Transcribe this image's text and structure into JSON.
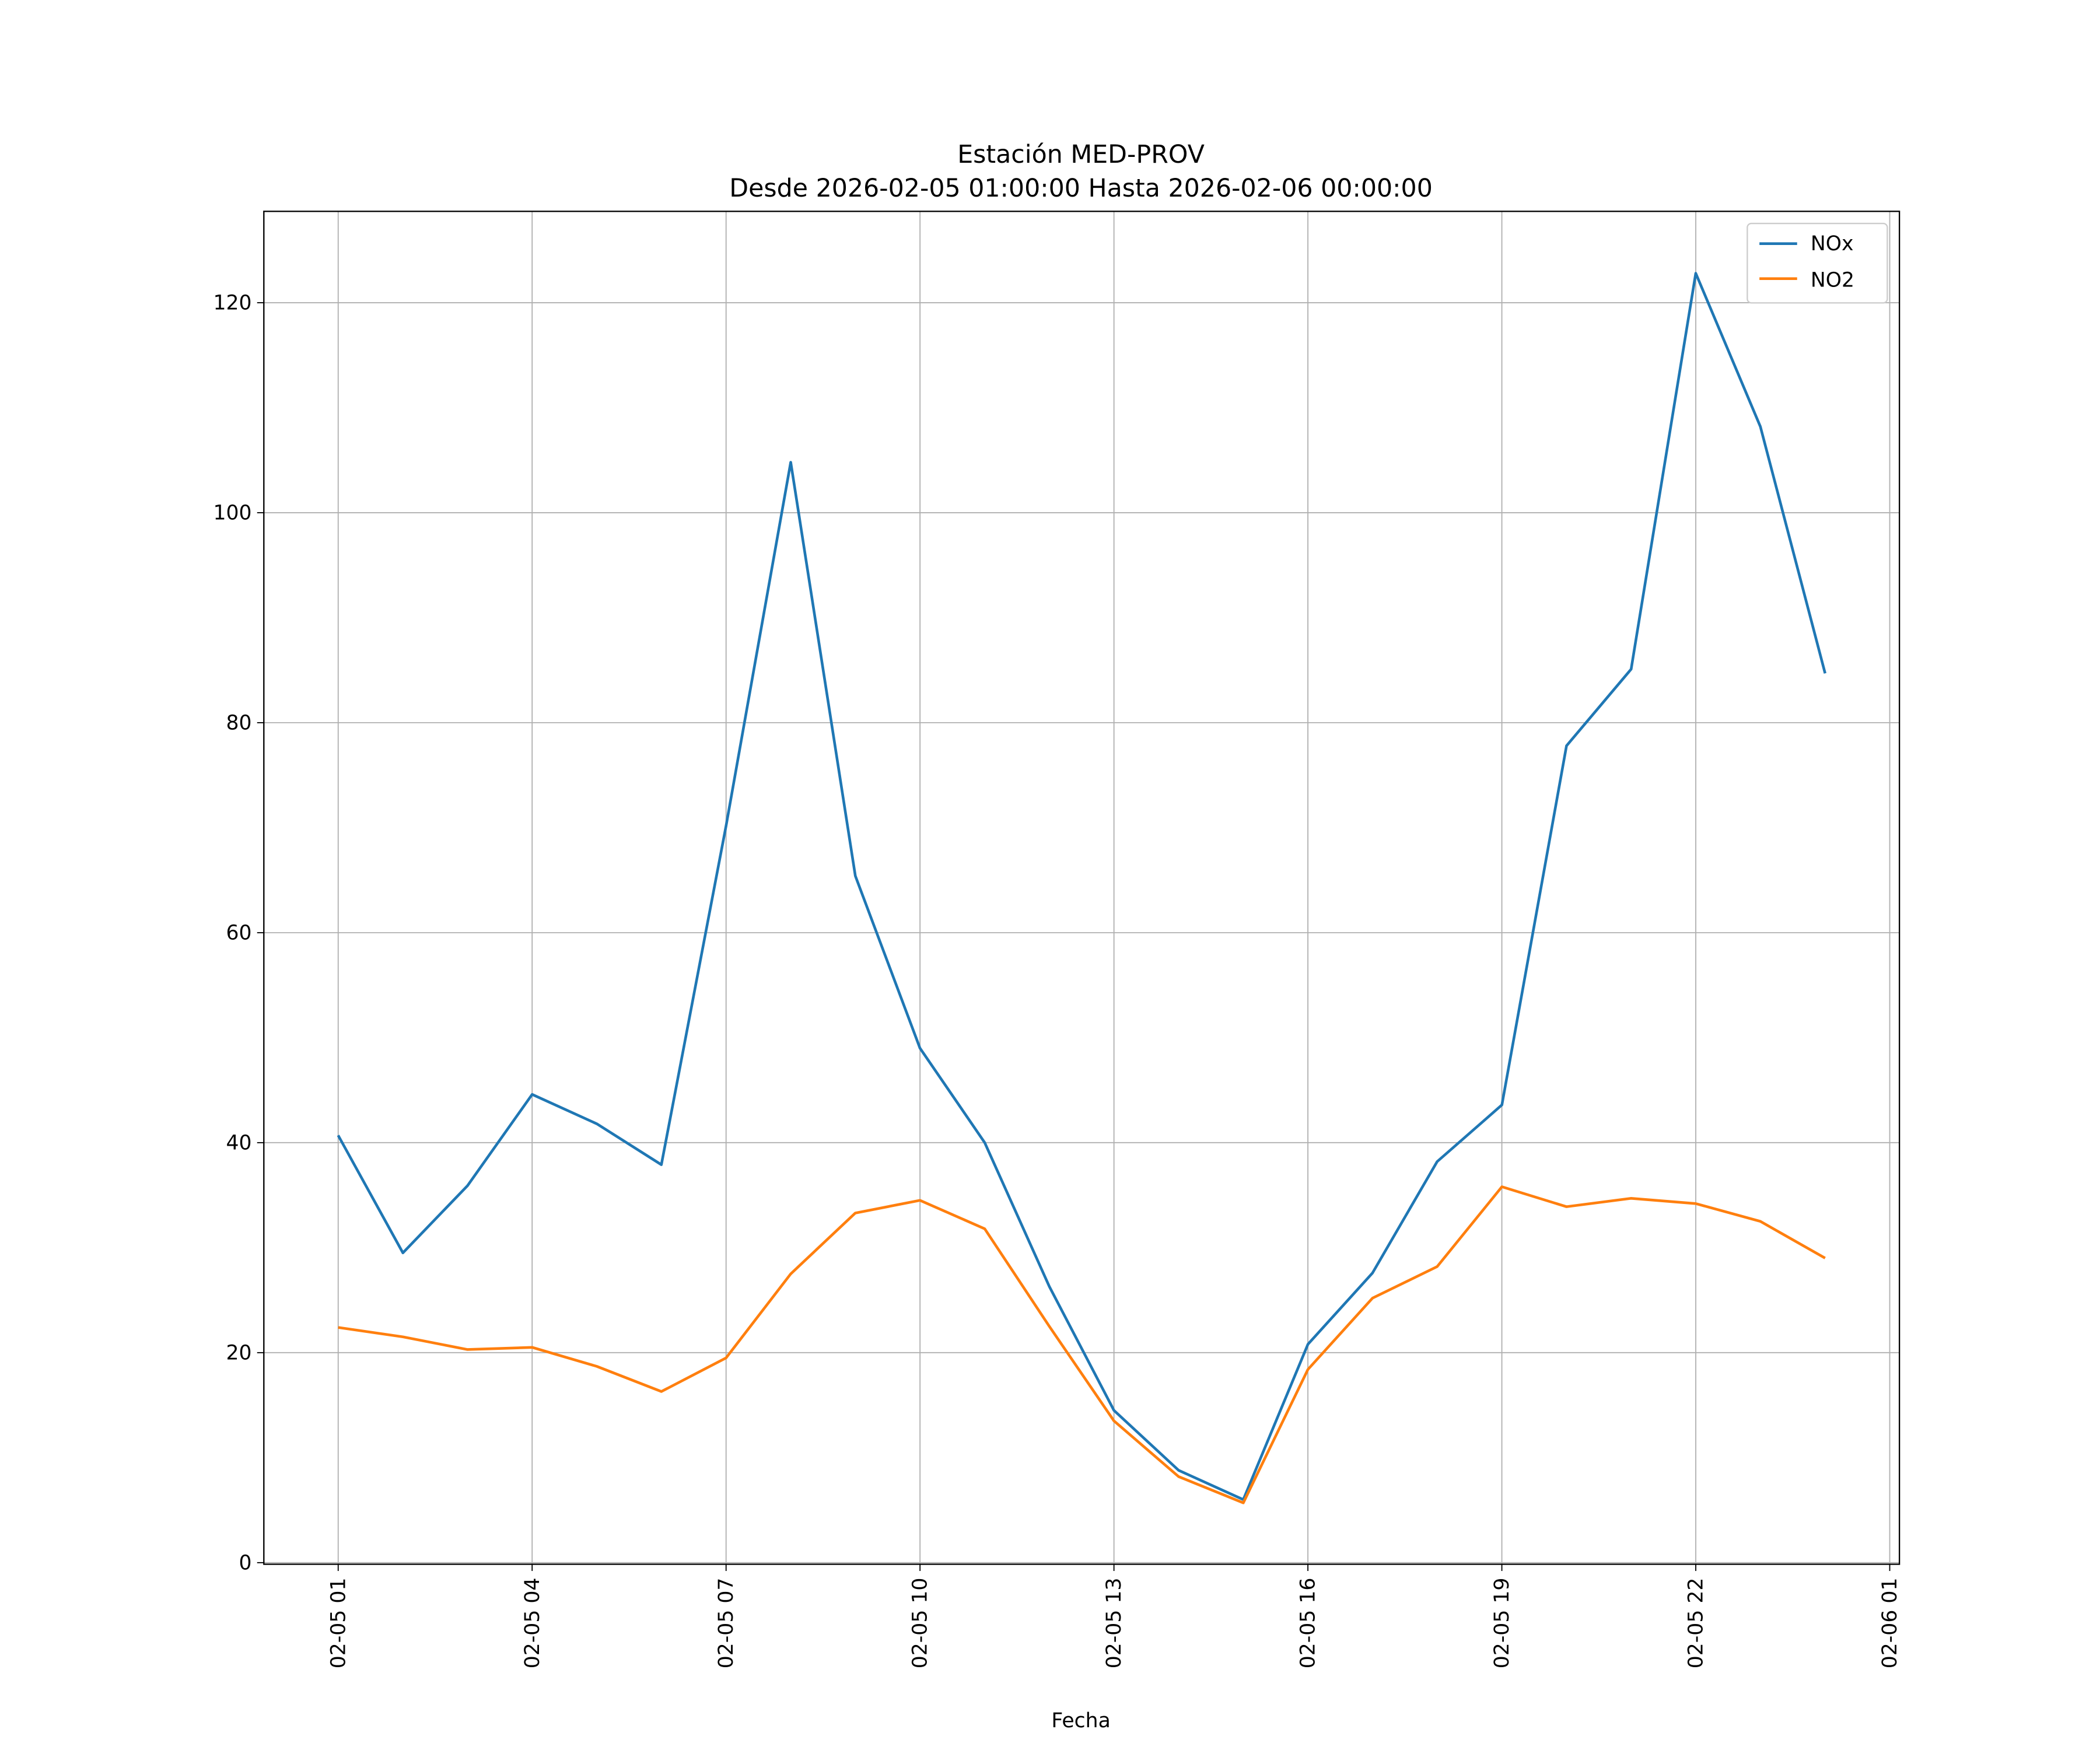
{
  "chart_data": {
    "type": "line",
    "title": "Estación MED-PROV",
    "subtitle": "Desde 2026-02-05 01:00:00 Hasta 2026-02-06 00:00:00",
    "xlabel": "Fecha",
    "ylabel": "",
    "x_unit": "hours since 2026-02-05 00:00",
    "x": [
      1,
      2,
      3,
      4,
      5,
      6,
      7,
      8,
      9,
      10,
      11,
      12,
      13,
      14,
      15,
      16,
      17,
      18,
      19,
      20,
      21,
      22,
      23,
      24
    ],
    "xlim": [
      -0.15,
      25.15
    ],
    "ylim": [
      -0.15,
      128.7
    ],
    "xticks": [
      1,
      4,
      7,
      10,
      13,
      16,
      19,
      22,
      25
    ],
    "xtick_labels": [
      "02-05 01",
      "02-05 04",
      "02-05 07",
      "02-05 10",
      "02-05 13",
      "02-05 16",
      "02-05 19",
      "02-05 22",
      "02-06 01"
    ],
    "yticks": [
      0,
      20,
      40,
      60,
      80,
      100,
      120
    ],
    "ytick_labels": [
      "0",
      "20",
      "40",
      "60",
      "80",
      "100",
      "120"
    ],
    "grid": true,
    "legend_position": "top-right",
    "series": [
      {
        "name": "NOx",
        "color": "#1f77b4",
        "values": [
          40.7,
          29.5,
          35.9,
          44.6,
          41.8,
          37.9,
          70.2,
          104.8,
          65.4,
          49.0,
          40.0,
          26.3,
          14.5,
          8.8,
          6.0,
          20.8,
          27.6,
          38.2,
          43.6,
          77.8,
          85.1,
          122.8,
          108.2,
          84.7
        ]
      },
      {
        "name": "NO2",
        "color": "#ff7f0e",
        "values": [
          22.4,
          21.5,
          20.3,
          20.5,
          18.7,
          16.3,
          19.5,
          27.5,
          33.3,
          34.5,
          31.8,
          22.5,
          13.5,
          8.2,
          5.7,
          18.4,
          25.2,
          28.2,
          35.8,
          33.9,
          34.7,
          34.2,
          32.5,
          29.0
        ]
      }
    ]
  }
}
